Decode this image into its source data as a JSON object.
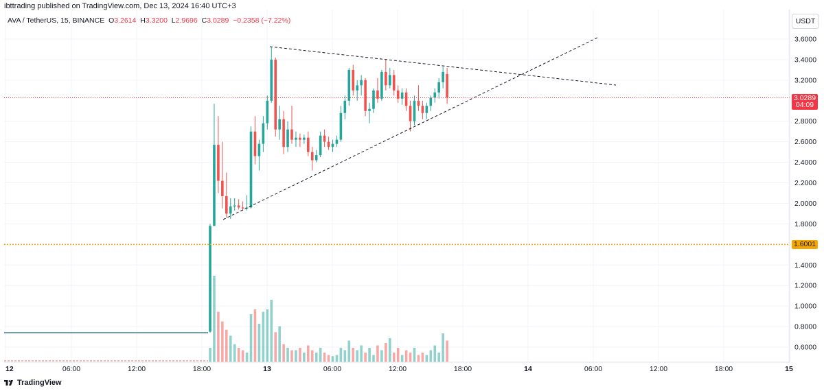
{
  "attribution": "ibttrading published on TradingView.com, Dec 13, 2024 16:40 UTC+3",
  "header": {
    "symbol": "AVA / TetherUS, 15, BINANCE",
    "open_label": "O",
    "open": "3.2614",
    "high_label": "H",
    "high": "3.3200",
    "low_label": "L",
    "low": "2.9696",
    "close_label": "C",
    "close": "3.0289",
    "change": "−0.2358 (−7.22%)"
  },
  "price_axis": {
    "unit": "USDT",
    "ticks": [
      "3.6000",
      "3.4000",
      "3.2000",
      "2.8000",
      "2.6000",
      "2.4000",
      "2.2000",
      "2.0000",
      "1.8000",
      "1.4000",
      "1.2000",
      "1.0000",
      "0.8000",
      "0.6000"
    ],
    "last_price": "3.0289",
    "countdown": "04:09",
    "level_price": "1.6001"
  },
  "time_axis": {
    "ticks": [
      "12",
      "06:00",
      "12:00",
      "18:00",
      "13",
      "06:00",
      "12:00",
      "18:00",
      "14",
      "06:00",
      "12:00",
      "18:00",
      "15"
    ]
  },
  "footer": {
    "brand": "TradingView"
  },
  "colors": {
    "up": "#26a69a",
    "down": "#ef5350",
    "level": "#f7a600",
    "last": "#f23645",
    "grid": "#f0f3fa"
  },
  "chart_data": {
    "type": "candlestick",
    "interval": "15",
    "ylim": [
      0.45,
      3.85
    ],
    "current_price": 3.0289,
    "horizontal_level": 1.6001,
    "pre_listing_price": 0.74,
    "candles": [
      {
        "o": 0.75,
        "h": 1.8,
        "l": 0.74,
        "c": 1.78
      },
      {
        "o": 1.78,
        "h": 2.97,
        "l": 1.8,
        "c": 2.57
      },
      {
        "o": 2.57,
        "h": 2.85,
        "l": 2.1,
        "c": 2.22
      },
      {
        "o": 2.22,
        "h": 2.6,
        "l": 1.95,
        "c": 2.07
      },
      {
        "o": 2.07,
        "h": 2.3,
        "l": 1.86,
        "c": 1.9
      },
      {
        "o": 1.9,
        "h": 2.05,
        "l": 1.85,
        "c": 1.97
      },
      {
        "o": 1.97,
        "h": 2.05,
        "l": 1.93,
        "c": 1.98
      },
      {
        "o": 1.98,
        "h": 2.04,
        "l": 1.94,
        "c": 1.96
      },
      {
        "o": 1.96,
        "h": 2.02,
        "l": 1.93,
        "c": 1.95
      },
      {
        "o": 1.95,
        "h": 2.08,
        "l": 1.93,
        "c": 1.96
      },
      {
        "o": 1.96,
        "h": 2.75,
        "l": 1.95,
        "c": 2.7
      },
      {
        "o": 2.7,
        "h": 2.85,
        "l": 2.38,
        "c": 2.46
      },
      {
        "o": 2.46,
        "h": 2.62,
        "l": 2.32,
        "c": 2.58
      },
      {
        "o": 2.58,
        "h": 2.85,
        "l": 2.5,
        "c": 2.78
      },
      {
        "o": 2.78,
        "h": 3.05,
        "l": 2.72,
        "c": 3.0
      },
      {
        "o": 3.0,
        "h": 3.52,
        "l": 2.98,
        "c": 3.4
      },
      {
        "o": 3.4,
        "h": 3.42,
        "l": 2.65,
        "c": 2.72
      },
      {
        "o": 2.72,
        "h": 2.95,
        "l": 2.62,
        "c": 2.82
      },
      {
        "o": 2.82,
        "h": 2.9,
        "l": 2.48,
        "c": 2.55
      },
      {
        "o": 2.55,
        "h": 2.8,
        "l": 2.5,
        "c": 2.72
      },
      {
        "o": 2.72,
        "h": 2.95,
        "l": 2.58,
        "c": 2.62
      },
      {
        "o": 2.62,
        "h": 2.7,
        "l": 2.55,
        "c": 2.64
      },
      {
        "o": 2.64,
        "h": 2.68,
        "l": 2.55,
        "c": 2.62
      },
      {
        "o": 2.62,
        "h": 2.67,
        "l": 2.58,
        "c": 2.64
      },
      {
        "o": 2.64,
        "h": 2.7,
        "l": 2.46,
        "c": 2.5
      },
      {
        "o": 2.5,
        "h": 2.55,
        "l": 2.32,
        "c": 2.42
      },
      {
        "o": 2.42,
        "h": 2.52,
        "l": 2.4,
        "c": 2.47
      },
      {
        "o": 2.47,
        "h": 2.7,
        "l": 2.45,
        "c": 2.66
      },
      {
        "o": 2.66,
        "h": 2.72,
        "l": 2.55,
        "c": 2.6
      },
      {
        "o": 2.6,
        "h": 2.65,
        "l": 2.52,
        "c": 2.55
      },
      {
        "o": 2.55,
        "h": 2.62,
        "l": 2.5,
        "c": 2.58
      },
      {
        "o": 2.58,
        "h": 2.66,
        "l": 2.55,
        "c": 2.62
      },
      {
        "o": 2.62,
        "h": 2.95,
        "l": 2.6,
        "c": 2.88
      },
      {
        "o": 2.88,
        "h": 3.05,
        "l": 2.82,
        "c": 3.0
      },
      {
        "o": 3.0,
        "h": 3.32,
        "l": 2.95,
        "c": 3.3
      },
      {
        "o": 3.3,
        "h": 3.35,
        "l": 3.05,
        "c": 3.1
      },
      {
        "o": 3.1,
        "h": 3.2,
        "l": 3.0,
        "c": 3.15
      },
      {
        "o": 3.15,
        "h": 3.25,
        "l": 3.05,
        "c": 3.2
      },
      {
        "o": 3.2,
        "h": 3.22,
        "l": 2.85,
        "c": 2.9
      },
      {
        "o": 2.9,
        "h": 2.98,
        "l": 2.78,
        "c": 2.92
      },
      {
        "o": 2.92,
        "h": 3.12,
        "l": 2.88,
        "c": 3.1
      },
      {
        "o": 3.1,
        "h": 3.22,
        "l": 2.98,
        "c": 3.02
      },
      {
        "o": 3.02,
        "h": 3.3,
        "l": 3.0,
        "c": 3.28
      },
      {
        "o": 3.28,
        "h": 3.4,
        "l": 3.1,
        "c": 3.15
      },
      {
        "o": 3.15,
        "h": 3.32,
        "l": 3.12,
        "c": 3.25
      },
      {
        "o": 3.25,
        "h": 3.3,
        "l": 3.05,
        "c": 3.1
      },
      {
        "o": 3.1,
        "h": 3.15,
        "l": 2.98,
        "c": 3.02
      },
      {
        "o": 3.02,
        "h": 3.12,
        "l": 2.96,
        "c": 3.08
      },
      {
        "o": 3.08,
        "h": 3.12,
        "l": 2.9,
        "c": 2.95
      },
      {
        "o": 2.95,
        "h": 3.0,
        "l": 2.7,
        "c": 2.8
      },
      {
        "o": 2.8,
        "h": 3.05,
        "l": 2.76,
        "c": 3.0
      },
      {
        "o": 3.0,
        "h": 3.15,
        "l": 2.9,
        "c": 2.95
      },
      {
        "o": 2.95,
        "h": 3.0,
        "l": 2.82,
        "c": 2.88
      },
      {
        "o": 2.88,
        "h": 2.98,
        "l": 2.82,
        "c": 2.95
      },
      {
        "o": 2.95,
        "h": 3.05,
        "l": 2.9,
        "c": 3.03
      },
      {
        "o": 3.03,
        "h": 3.12,
        "l": 2.98,
        "c": 3.08
      },
      {
        "o": 3.08,
        "h": 3.22,
        "l": 3.02,
        "c": 3.18
      },
      {
        "o": 3.18,
        "h": 3.33,
        "l": 3.12,
        "c": 3.28
      },
      {
        "o": 3.26,
        "h": 3.32,
        "l": 2.97,
        "c": 3.03
      }
    ],
    "volume": [
      12,
      72,
      42,
      34,
      27,
      22,
      15,
      12,
      10,
      8,
      40,
      44,
      32,
      42,
      44,
      52,
      25,
      30,
      15,
      12,
      10,
      10,
      12,
      8,
      14,
      10,
      8,
      12,
      8,
      6,
      5,
      6,
      12,
      10,
      18,
      12,
      10,
      14,
      8,
      12,
      6,
      14,
      10,
      16,
      20,
      8,
      12,
      6,
      10,
      8,
      12,
      6,
      8,
      6,
      10,
      14,
      8,
      24,
      18
    ]
  }
}
